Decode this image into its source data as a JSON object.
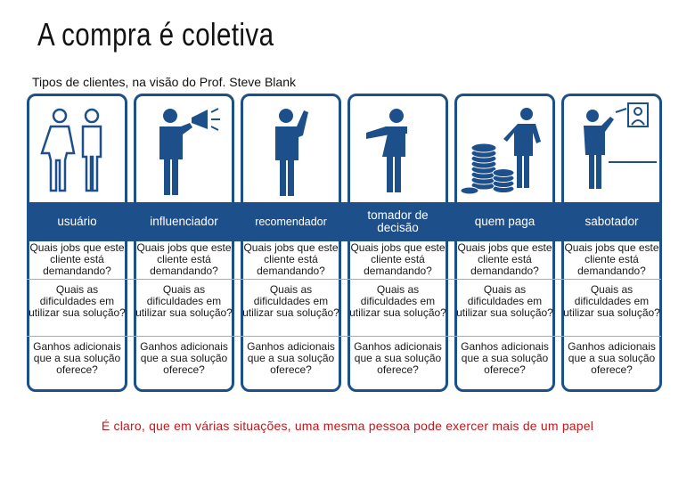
{
  "title": "A compra é coletiva",
  "subtitle": "Tipos de clientes, na visão do Prof. Steve Blank",
  "colors": {
    "accent": "#1d4f8a",
    "footer_text": "#c0181c"
  },
  "roles": [
    {
      "label": "usuário",
      "icon": "couple-icon",
      "q1": "Quais jobs que este cliente está demandando?",
      "q2": "Quais as dificuldades em utilizar sua solução?",
      "q3": "Ganhos adicionais que a sua solução oferece?"
    },
    {
      "label": "influenciador",
      "icon": "megaphone-person-icon",
      "q1": "Quais jobs que este cliente está demandando?",
      "q2": "Quais as dificuldades em utilizar sua solução?",
      "q3": "Ganhos adicionais que a sua solução oferece?"
    },
    {
      "label": "recomendador",
      "icon": "pointing-up-person-icon",
      "q1": "Quais jobs que este cliente está demandando?",
      "q2": "Quais as dificuldades em utilizar sua solução?",
      "q3": "Ganhos adicionais que a sua solução oferece?"
    },
    {
      "label": "tomador de decisão",
      "icon": "pointing-person-icon",
      "q1": "Quais jobs que este cliente está demandando?",
      "q2": "Quais as dificuldades em utilizar sua solução?",
      "q3": "Ganhos adicionais que a sua solução oferece?"
    },
    {
      "label": "quem paga",
      "icon": "coins-person-icon",
      "q1": "Quais jobs que este cliente está demandando?",
      "q2": "Quais as dificuldades em utilizar sua solução?",
      "q3": "Ganhos adicionais que a sua solução oferece?"
    },
    {
      "label": "sabotador",
      "icon": "dart-thrower-icon",
      "q1": "Quais jobs que este cliente está demandando?",
      "q2": "Quais as dificuldades em utilizar sua solução?",
      "q3": "Ganhos adicionais que a sua solução oferece?"
    }
  ],
  "footer": "É claro, que em várias situações, uma mesma pessoa pode exercer mais de um papel"
}
